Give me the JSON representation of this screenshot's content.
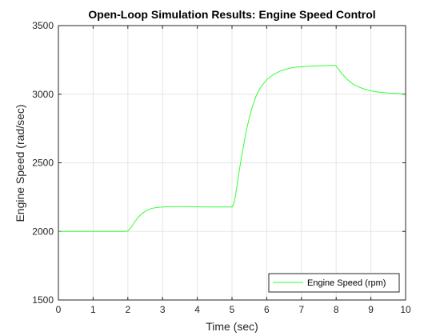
{
  "figure": {
    "background": "#ffffff"
  },
  "chart_data": {
    "type": "line",
    "title": "Open-Loop Simulation Results: Engine Speed Control",
    "xlabel": "Time (sec)",
    "ylabel": "Engine Speed (rad/sec)",
    "xlim": [
      0,
      10
    ],
    "ylim": [
      1500,
      3500
    ],
    "xticks": [
      0,
      1,
      2,
      3,
      4,
      5,
      6,
      7,
      8,
      9,
      10
    ],
    "yticks": [
      1500,
      2000,
      2500,
      3000,
      3500
    ],
    "grid": true,
    "legend_location": "bottom-right",
    "axis_color": "#262626",
    "grid_color": "#e5e5e5",
    "series": [
      {
        "name": "Engine Speed (rpm)",
        "color": "#33ff33",
        "x": [
          0,
          1,
          1.95,
          2.0,
          2.1,
          2.2,
          2.3,
          2.4,
          2.5,
          2.6,
          2.7,
          2.8,
          2.9,
          3.0,
          3.2,
          3.5,
          4.0,
          4.5,
          5.0,
          5.05,
          5.1,
          5.15,
          5.2,
          5.3,
          5.4,
          5.5,
          5.6,
          5.7,
          5.8,
          5.9,
          6.0,
          6.2,
          6.4,
          6.6,
          6.8,
          7.0,
          7.3,
          7.6,
          7.95,
          8.0,
          8.1,
          8.2,
          8.3,
          8.4,
          8.5,
          8.6,
          8.8,
          9.0,
          9.2,
          9.5,
          9.8,
          10.0
        ],
        "y": [
          2000,
          2000,
          2000,
          2003,
          2030,
          2070,
          2103,
          2128,
          2147,
          2160,
          2168,
          2173,
          2176,
          2178,
          2180,
          2180,
          2179,
          2178,
          2178,
          2200,
          2260,
          2340,
          2430,
          2580,
          2720,
          2830,
          2920,
          2990,
          3040,
          3075,
          3105,
          3145,
          3170,
          3186,
          3196,
          3200,
          3205,
          3208,
          3210,
          3205,
          3170,
          3140,
          3112,
          3090,
          3072,
          3058,
          3038,
          3025,
          3016,
          3008,
          3004,
          3002
        ]
      }
    ]
  }
}
